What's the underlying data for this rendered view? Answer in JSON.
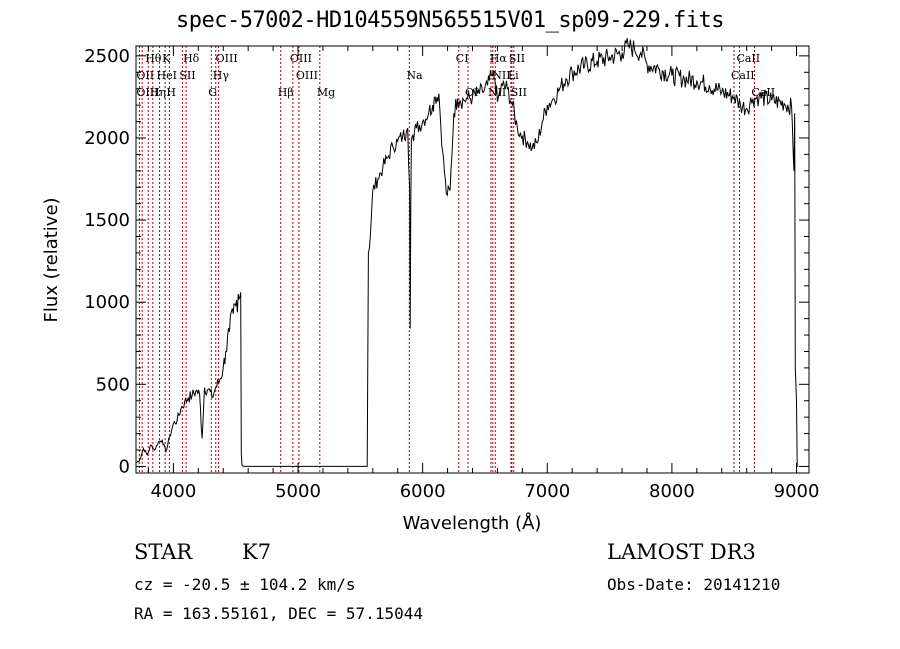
{
  "chart_data": {
    "type": "line",
    "title": "spec-57002-HD104559N565515V01_sp09-229.fits",
    "xlabel": "Wavelength (Å)",
    "ylabel": "Flux (relative)",
    "xlim": [
      3700,
      9100
    ],
    "ylim": [
      -40,
      2560
    ],
    "xticks": [
      4000,
      5000,
      6000,
      7000,
      8000,
      9000
    ],
    "xtick_labels": [
      "4000",
      "5000",
      "6000",
      "7000",
      "8000",
      "9000"
    ],
    "yticks": [
      0,
      500,
      1000,
      1500,
      2000,
      2500
    ],
    "ytick_labels": [
      "0",
      "500",
      "1000",
      "1500",
      "2000",
      "2500"
    ],
    "grid": false,
    "series": [
      {
        "name": "flux",
        "x": [
          3700,
          3730,
          3760,
          3790,
          3820,
          3850,
          3880,
          3910,
          3940,
          3970,
          4000,
          4030,
          4060,
          4090,
          4120,
          4150,
          4180,
          4210,
          4230,
          4250,
          4280,
          4310,
          4340,
          4370,
          4400,
          4420,
          4450,
          4480,
          4500,
          4520,
          4540,
          4545,
          4550,
          4560,
          5555,
          5565,
          5580,
          5600,
          5640,
          5680,
          5720,
          5760,
          5800,
          5840,
          5870,
          5880,
          5895,
          5900,
          5905,
          5910,
          5920,
          5950,
          6000,
          6050,
          6080,
          6100,
          6130,
          6160,
          6190,
          6220,
          6250,
          6280,
          6300,
          6330,
          6360,
          6400,
          6440,
          6480,
          6520,
          6560,
          6580,
          6600,
          6640,
          6680,
          6720,
          6760,
          6800,
          6840,
          6880,
          6920,
          6960,
          7000,
          7050,
          7100,
          7150,
          7200,
          7300,
          7400,
          7500,
          7600,
          7650,
          7700,
          7750,
          7800,
          7900,
          8000,
          8100,
          8200,
          8300,
          8400,
          8500,
          8550,
          8600,
          8650,
          8700,
          8800,
          8900,
          8960,
          8980,
          8985,
          8990,
          9000,
          9005,
          9010
        ],
        "y": [
          20,
          40,
          110,
          70,
          130,
          100,
          150,
          160,
          90,
          180,
          260,
          280,
          350,
          390,
          420,
          430,
          460,
          440,
          170,
          480,
          470,
          420,
          480,
          520,
          600,
          700,
          820,
          930,
          980,
          1050,
          1060,
          80,
          10,
          0,
          0,
          1300,
          1400,
          1680,
          1750,
          1820,
          1880,
          1950,
          1980,
          2010,
          2040,
          2060,
          1700,
          840,
          1600,
          1990,
          2020,
          2060,
          2100,
          2160,
          2200,
          2250,
          2270,
          1920,
          1660,
          1680,
          2150,
          2240,
          2230,
          2230,
          2240,
          2250,
          2270,
          2280,
          2320,
          2380,
          2360,
          2220,
          2320,
          2300,
          2200,
          2060,
          2010,
          1980,
          1940,
          1970,
          2100,
          2200,
          2240,
          2300,
          2360,
          2400,
          2440,
          2470,
          2490,
          2520,
          2560,
          2540,
          2520,
          2450,
          2420,
          2380,
          2360,
          2350,
          2320,
          2280,
          2250,
          2200,
          2180,
          2240,
          2250,
          2230,
          2210,
          2190,
          1800,
          2150,
          600,
          400,
          0,
          0
        ]
      }
    ],
    "spectral_lines": [
      {
        "name": "Hθ",
        "wavelength": 3798,
        "row": 0
      },
      {
        "name": "K",
        "wavelength": 3934,
        "row": 0
      },
      {
        "name": "Hδ",
        "wavelength": 4102,
        "row": 0
      },
      {
        "name": "OIII",
        "wavelength": 4363,
        "row": 0
      },
      {
        "name": "OIII",
        "wavelength": 4959,
        "row": 0
      },
      {
        "name": "CI",
        "wavelength": 6290,
        "row": 0
      },
      {
        "name": "Hα",
        "wavelength": 6563,
        "row": 0
      },
      {
        "name": "SII",
        "wavelength": 6716,
        "row": 0
      },
      {
        "name": "CaII",
        "wavelength": 8542,
        "row": 0
      },
      {
        "name": "OII",
        "wavelength": 3727,
        "row": 1
      },
      {
        "name": "HeI",
        "wavelength": 3889,
        "row": 1
      },
      {
        "name": "SII",
        "wavelength": 4072,
        "row": 1
      },
      {
        "name": "Hγ",
        "wavelength": 4340,
        "row": 1
      },
      {
        "name": "OIII",
        "wavelength": 5007,
        "row": 1
      },
      {
        "name": "Na",
        "wavelength": 5893,
        "row": 1
      },
      {
        "name": "NII",
        "wavelength": 6583,
        "row": 1
      },
      {
        "name": "Li",
        "wavelength": 6708,
        "row": 1
      },
      {
        "name": "CaII",
        "wavelength": 8498,
        "row": 1
      },
      {
        "name": "OIII",
        "wavelength": 3727,
        "row": 2
      },
      {
        "name": "Hη",
        "wavelength": 3835,
        "row": 2
      },
      {
        "name": "H",
        "wavelength": 3968,
        "row": 2
      },
      {
        "name": "G",
        "wavelength": 4304,
        "row": 2
      },
      {
        "name": "Hβ",
        "wavelength": 4861,
        "row": 2
      },
      {
        "name": "Mg",
        "wavelength": 5175,
        "row": 2
      },
      {
        "name": "OI",
        "wavelength": 6364,
        "row": 2
      },
      {
        "name": "NII",
        "wavelength": 6548,
        "row": 2
      },
      {
        "name": "SII",
        "wavelength": 6731,
        "row": 2
      },
      {
        "name": "CaII",
        "wavelength": 8662,
        "row": 2
      }
    ],
    "marker_lines": [
      3727,
      3750,
      3798,
      3835,
      3889,
      3934,
      3968,
      4072,
      4102,
      4304,
      4340,
      4363,
      4861,
      4959,
      5007,
      5175,
      5893,
      6290,
      6364,
      6548,
      6563,
      6583,
      6708,
      6716,
      6731,
      8498,
      8542,
      8662
    ]
  },
  "colors": {
    "marker_line": "#b0000f",
    "spectrum": "#000000"
  },
  "info": {
    "object_class": "STAR",
    "subclass": "K7",
    "survey": "LAMOST DR3",
    "cz": "cz = -20.5 ± 104.2 km/s",
    "obs_date": "Obs-Date: 20141210",
    "coords": "RA = 163.55161, DEC =  57.15044"
  }
}
